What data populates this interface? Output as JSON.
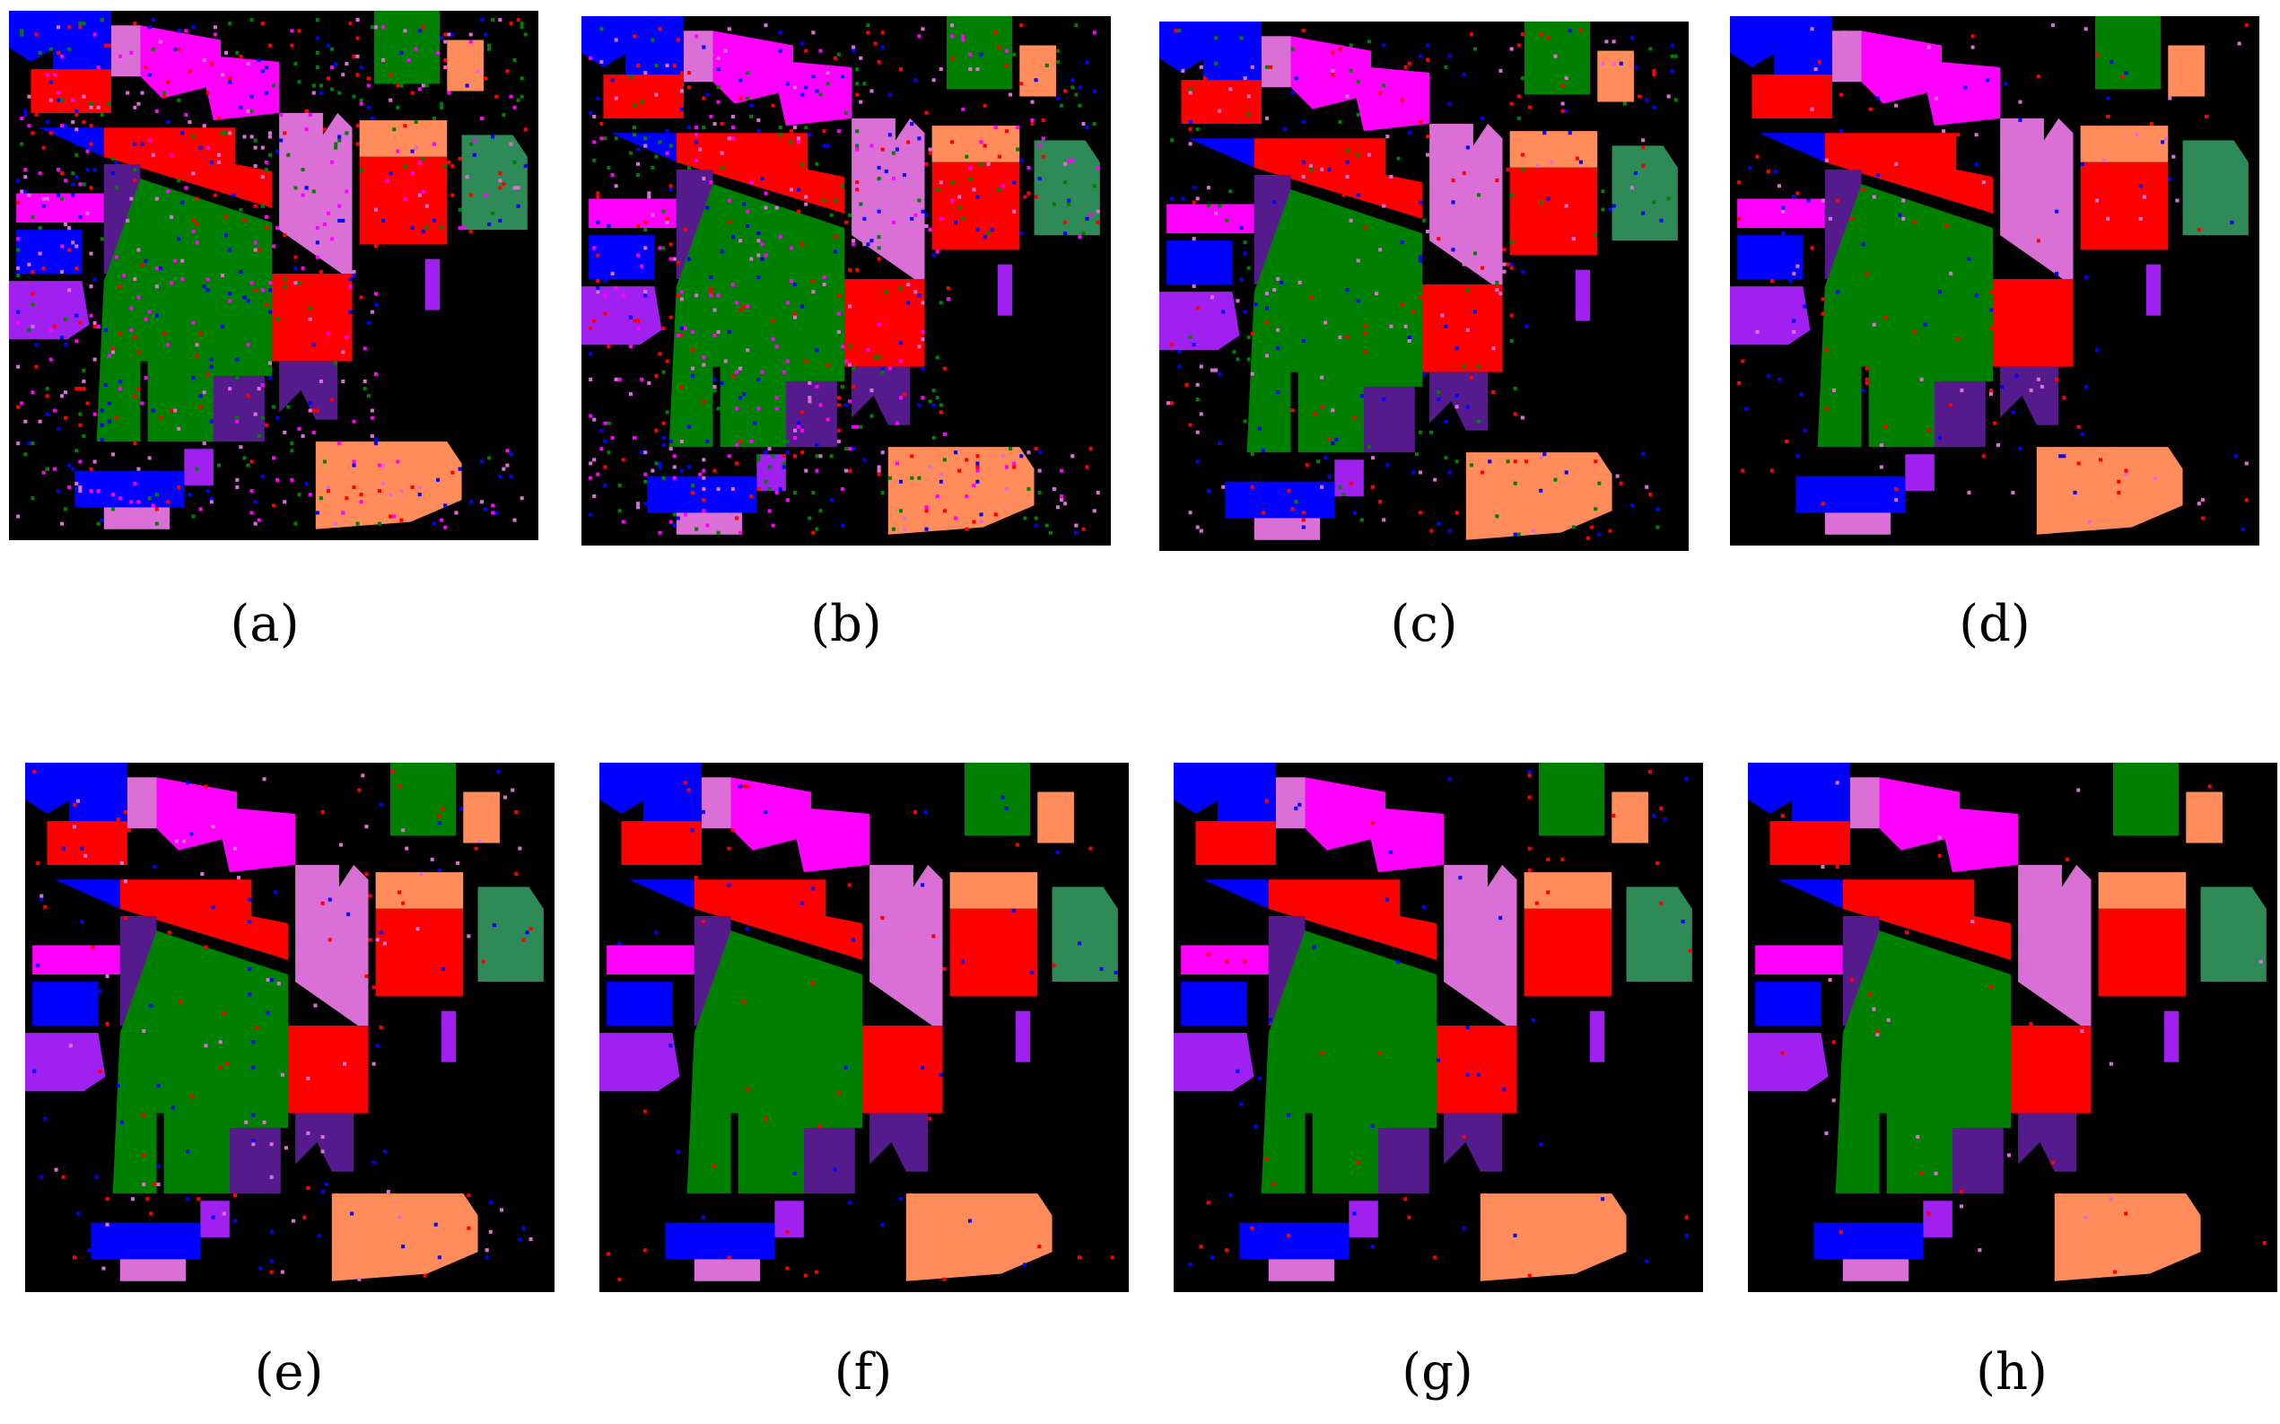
{
  "figure": {
    "panels": [
      {
        "id": "a",
        "label": "(a)",
        "noise": "heavy"
      },
      {
        "id": "b",
        "label": "(b)",
        "noise": "heavy"
      },
      {
        "id": "c",
        "label": "(c)",
        "noise": "medium"
      },
      {
        "id": "d",
        "label": "(d)",
        "noise": "light"
      },
      {
        "id": "e",
        "label": "(e)",
        "noise": "light"
      },
      {
        "id": "f",
        "label": "(f)",
        "noise": "very-light"
      },
      {
        "id": "g",
        "label": "(g)",
        "noise": "very-light"
      },
      {
        "id": "h",
        "label": "(h)",
        "noise": "minimal"
      }
    ],
    "class_colors": {
      "background": "#000000",
      "blue": "#0000ff",
      "red": "#ff0000",
      "green": "#008000",
      "magenta": "#ff00ff",
      "orchid": "#da70d6",
      "violet": "#a020f0",
      "dark-purple": "#551a8b",
      "sea-green": "#2e8b57",
      "coral": "#ff8c5a"
    }
  }
}
